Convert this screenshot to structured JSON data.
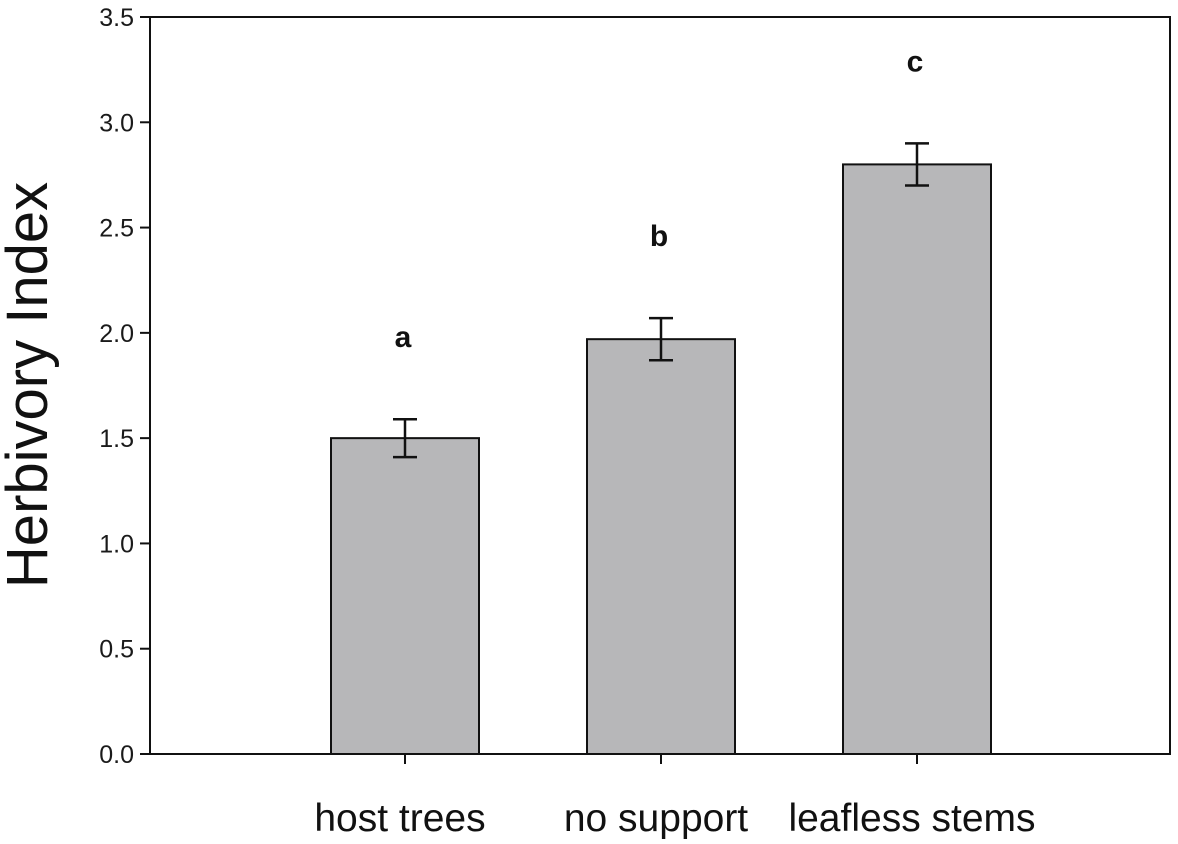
{
  "chart_data": {
    "type": "bar",
    "categories": [
      "host trees",
      "no support",
      "leafless stems"
    ],
    "values": [
      1.5,
      1.97,
      2.8
    ],
    "errors": [
      0.09,
      0.1,
      0.1
    ],
    "significance_labels": [
      "a",
      "b",
      "c"
    ],
    "title": "",
    "xlabel": "",
    "ylabel": "Herbivory Index",
    "ylim": [
      0,
      3.5
    ],
    "yticks": [
      "0.0",
      "0.5",
      "1.0",
      "1.5",
      "2.0",
      "2.5",
      "3.0",
      "3.5"
    ],
    "grid": false,
    "legend": "none",
    "bar_color": "#b7b7b9",
    "edge_color": "#111111"
  }
}
